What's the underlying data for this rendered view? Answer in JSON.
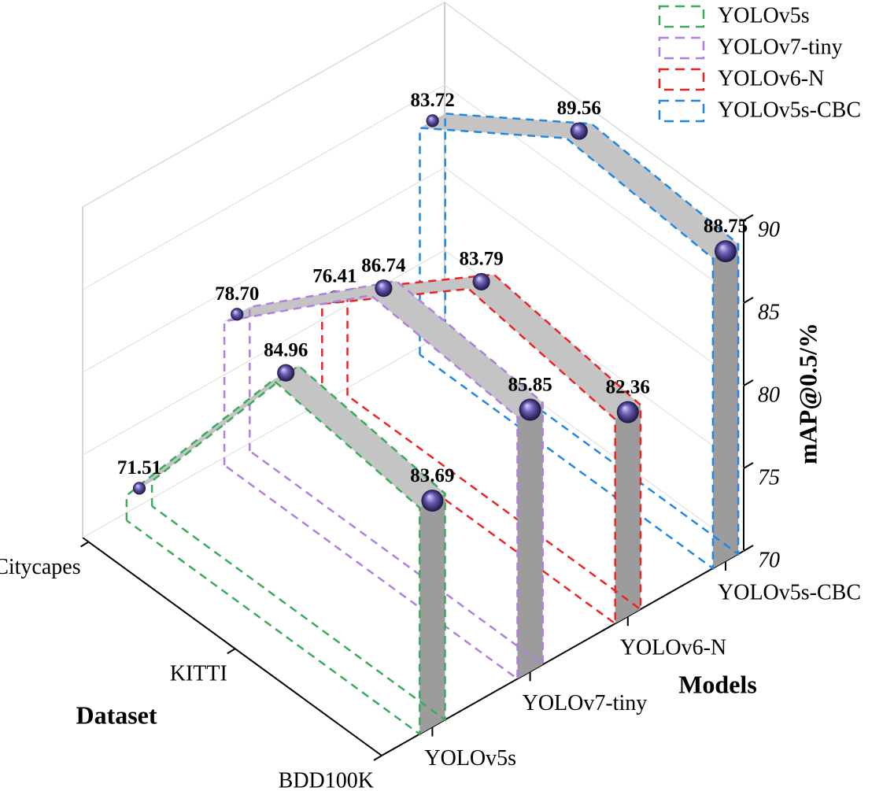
{
  "chart_data": {
    "type": "ribbon3d",
    "x_label": "Dataset",
    "y_label": "Models",
    "z_label": "mAP@0.5/%",
    "categories": [
      "Citycapes",
      "KITTI",
      "BDD100K"
    ],
    "series": [
      {
        "name": "YOLOv5s",
        "color": "#3aaa5c",
        "values": [
          71.51,
          84.96,
          83.69
        ],
        "value_labels": [
          "71.51",
          "84.96",
          "83.69"
        ]
      },
      {
        "name": "YOLOv7-tiny",
        "color": "#b07fe0",
        "values": [
          78.7,
          86.74,
          85.85
        ],
        "value_labels": [
          "78.70",
          "86.74",
          "85.85"
        ]
      },
      {
        "name": "YOLOv6-N",
        "color": "#ee2222",
        "values": [
          76.41,
          83.79,
          82.36
        ],
        "value_labels": [
          "76.41",
          "83.79",
          "82.36"
        ]
      },
      {
        "name": "YOLOv5s-CBC",
        "color": "#1e88e5",
        "values": [
          83.72,
          89.56,
          88.75
        ],
        "value_labels": [
          "83.72",
          "89.56",
          "88.75"
        ]
      }
    ],
    "zlim": [
      70,
      90
    ],
    "zticks": [
      70,
      75,
      80,
      85,
      90
    ],
    "grid": true,
    "legend": "upper right"
  }
}
